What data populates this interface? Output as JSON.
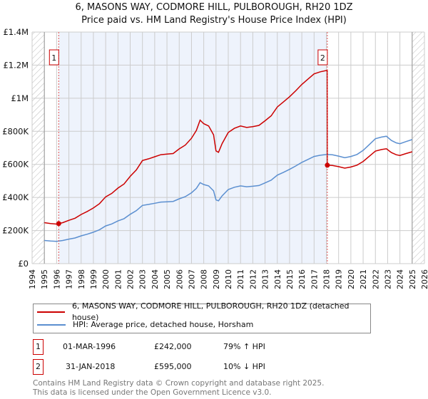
{
  "chart_data": {
    "type": "line",
    "title": "6, MASONS WAY, CODMORE HILL, PULBOROUGH, RH20 1DZ",
    "subtitle": "Price paid vs. HM Land Registry's House Price Index (HPI)",
    "xlim": [
      1994,
      2026
    ],
    "ylim": [
      0,
      1400000
    ],
    "x_ticks": [
      "1994",
      "1995",
      "1996",
      "1997",
      "1998",
      "1999",
      "2000",
      "2001",
      "2002",
      "2003",
      "2004",
      "2005",
      "2006",
      "2007",
      "2008",
      "2009",
      "2010",
      "2011",
      "2012",
      "2013",
      "2014",
      "2015",
      "2016",
      "2017",
      "2018",
      "2019",
      "2020",
      "2021",
      "2022",
      "2023",
      "2024",
      "2025",
      "2026"
    ],
    "y_ticks": [
      {
        "value": 0,
        "label": "£0"
      },
      {
        "value": 200000,
        "label": "£200K"
      },
      {
        "value": 400000,
        "label": "£400K"
      },
      {
        "value": 600000,
        "label": "£600K"
      },
      {
        "value": 800000,
        "label": "£800K"
      },
      {
        "value": 1000000,
        "label": "£1M"
      },
      {
        "value": 1200000,
        "label": "£1.2M"
      },
      {
        "value": 1400000,
        "label": "£1.4M"
      }
    ],
    "grid": true,
    "colors": {
      "property": "#cc0000",
      "hpi": "#5b8fd0",
      "shade": "#eef3fc"
    },
    "hpi_series": {
      "name": "HPI: Average price, detached house, Horsham",
      "x": [
        1995,
        1995.5,
        1996,
        1996.5,
        1997,
        1997.5,
        1998,
        1998.5,
        1999,
        1999.5,
        2000,
        2000.5,
        2001,
        2001.5,
        2002,
        2002.5,
        2003,
        2003.5,
        2004,
        2004.5,
        2005,
        2005.5,
        2006,
        2006.5,
        2007,
        2007.4,
        2007.7,
        2008,
        2008.4,
        2008.8,
        2009.0,
        2009.2,
        2009.5,
        2010,
        2010.5,
        2011,
        2011.5,
        2012,
        2012.5,
        2013,
        2013.5,
        2014,
        2014.5,
        2015,
        2015.5,
        2016,
        2016.5,
        2017,
        2017.5,
        2018.05,
        2018.5,
        2019,
        2019.5,
        2020,
        2020.5,
        2021,
        2021.5,
        2022,
        2022.5,
        2022.9,
        2023.3,
        2023.7,
        2024,
        2024.5,
        2025
      ],
      "values": [
        140000,
        137000,
        135000,
        140000,
        148000,
        155000,
        168000,
        178000,
        190000,
        205000,
        228000,
        240000,
        258000,
        272000,
        298000,
        320000,
        352000,
        358000,
        365000,
        372000,
        374000,
        376000,
        392000,
        405000,
        428000,
        455000,
        490000,
        478000,
        470000,
        440000,
        385000,
        380000,
        410000,
        448000,
        462000,
        470000,
        465000,
        468000,
        472000,
        488000,
        505000,
        535000,
        552000,
        570000,
        590000,
        612000,
        630000,
        648000,
        655000,
        660000,
        658000,
        650000,
        640000,
        648000,
        660000,
        685000,
        720000,
        755000,
        765000,
        770000,
        745000,
        730000,
        725000,
        738000,
        750000
      ]
    },
    "property_series": {
      "name": "6, MASONS WAY, CODMORE HILL, PULBOROUGH, RH20 1DZ (detached house)"
    },
    "sales": [
      {
        "id": "1",
        "x": 1996.17,
        "date": "01-MAR-1996",
        "price": 242000,
        "price_label": "£242,000",
        "hpi_change": "79% ↑ HPI"
      },
      {
        "id": "2",
        "x": 2018.08,
        "date": "31-JAN-2018",
        "price": 595000,
        "price_label": "£595,000",
        "hpi_change": "10% ↓ HPI"
      }
    ],
    "hatched_ranges": [
      [
        1994,
        1995
      ],
      [
        2025,
        2026
      ]
    ]
  },
  "footer": {
    "line1": "Contains HM Land Registry data © Crown copyright and database right 2025.",
    "line2": "This data is licensed under the Open Government Licence v3.0."
  }
}
